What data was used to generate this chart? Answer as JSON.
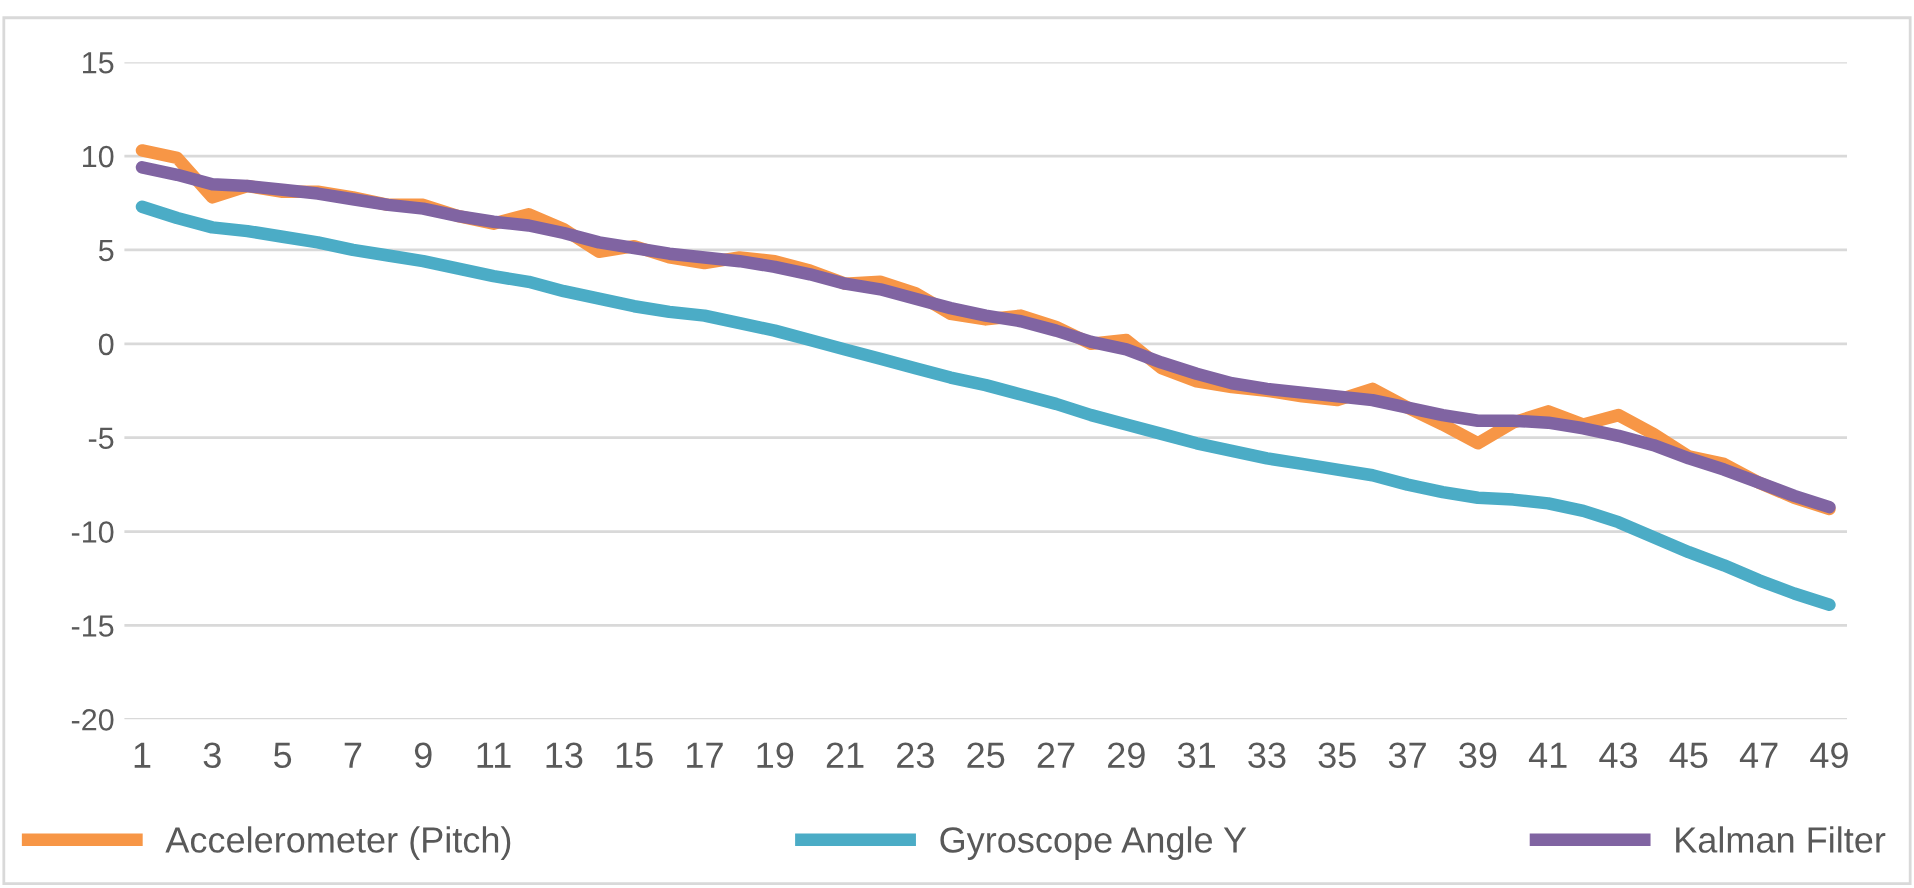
{
  "chart_data": {
    "type": "line",
    "categories": [
      "1",
      null,
      "3",
      null,
      "5",
      null,
      "7",
      null,
      "9",
      null,
      "11",
      null,
      "13",
      null,
      "15",
      null,
      "17",
      null,
      "19",
      null,
      "21",
      null,
      "23",
      null,
      "25",
      null,
      "27",
      null,
      "29",
      null,
      "31",
      null,
      "33",
      null,
      "35",
      null,
      "37",
      null,
      "39",
      null,
      "41",
      null,
      "43",
      null,
      "45",
      null,
      "47",
      null,
      "49"
    ],
    "series": [
      {
        "name": "Accelerometer (Pitch)",
        "color": "#f79646",
        "values": [
          10.3,
          9.9,
          7.8,
          8.4,
          8.1,
          8.1,
          7.8,
          7.4,
          7.4,
          6.8,
          6.4,
          6.9,
          6.1,
          4.9,
          5.2,
          4.6,
          4.3,
          4.6,
          4.4,
          3.9,
          3.2,
          3.3,
          2.7,
          1.6,
          1.3,
          1.5,
          0.9,
          0.0,
          0.2,
          -1.3,
          -2.0,
          -2.3,
          -2.5,
          -2.8,
          -3.0,
          -2.4,
          -3.4,
          -4.3,
          -5.3,
          -4.2,
          -3.6,
          -4.3,
          -3.8,
          -4.8,
          -6.0,
          -6.4,
          -7.4,
          -8.2,
          -8.8
        ]
      },
      {
        "name": "Gyroscope Angle Y",
        "color": "#4bacc6",
        "values": [
          7.3,
          6.7,
          6.2,
          6.0,
          5.7,
          5.4,
          5.0,
          4.7,
          4.4,
          4.0,
          3.6,
          3.3,
          2.8,
          2.4,
          2.0,
          1.7,
          1.5,
          1.1,
          0.7,
          0.2,
          -0.3,
          -0.8,
          -1.3,
          -1.8,
          -2.2,
          -2.7,
          -3.2,
          -3.8,
          -4.3,
          -4.8,
          -5.3,
          -5.7,
          -6.1,
          -6.4,
          -6.7,
          -7.0,
          -7.5,
          -7.9,
          -8.2,
          -8.3,
          -8.5,
          -8.9,
          -9.5,
          -10.3,
          -11.1,
          -11.8,
          -12.6,
          -13.3,
          -13.9
        ]
      },
      {
        "name": "Kalman Filter",
        "color": "#8064a2",
        "values": [
          9.4,
          9.0,
          8.5,
          8.4,
          8.2,
          8.0,
          7.7,
          7.4,
          7.2,
          6.8,
          6.5,
          6.3,
          5.9,
          5.4,
          5.1,
          4.8,
          4.6,
          4.4,
          4.1,
          3.7,
          3.2,
          2.9,
          2.4,
          1.9,
          1.5,
          1.2,
          0.7,
          0.1,
          -0.3,
          -1.0,
          -1.6,
          -2.1,
          -2.4,
          -2.6,
          -2.8,
          -3.0,
          -3.4,
          -3.8,
          -4.1,
          -4.1,
          -4.2,
          -4.5,
          -4.9,
          -5.4,
          -6.1,
          -6.7,
          -7.4,
          -8.1,
          -8.7
        ]
      }
    ],
    "ylim": [
      -20,
      15
    ],
    "yticks": [
      -20,
      -15,
      -10,
      -5,
      0,
      5,
      10,
      15
    ],
    "grid": "y",
    "legend": "bottom",
    "marker": "none",
    "line_style": "solid"
  }
}
